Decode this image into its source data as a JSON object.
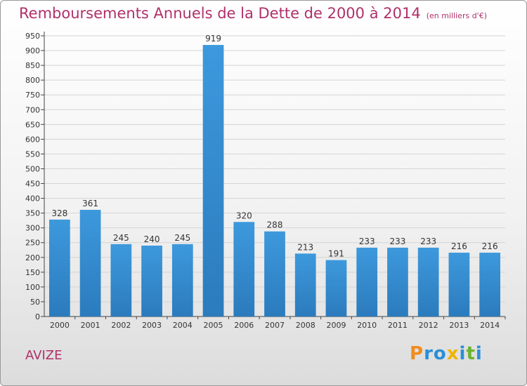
{
  "header": {
    "title": "Remboursements Annuels de la Dette de 2000 à 2014",
    "unit": "(en milliers d'€)"
  },
  "footer": {
    "place": "AVIZE",
    "logo": {
      "letters": [
        "P",
        "r",
        "o",
        "x",
        "i",
        "t",
        "i"
      ],
      "colors": [
        "#f08c1e",
        "#2a8fd6",
        "#2a8fd6",
        "#f0b400",
        "#2a8fd6",
        "#6ab42d",
        "#2a8fd6"
      ]
    }
  },
  "chart_data": {
    "type": "bar",
    "title": "Remboursements Annuels de la Dette de 2000 à 2014",
    "xlabel": "",
    "ylabel": "",
    "categories": [
      "2000",
      "2001",
      "2002",
      "2003",
      "2004",
      "2005",
      "2006",
      "2007",
      "2008",
      "2009",
      "2010",
      "2011",
      "2012",
      "2013",
      "2014"
    ],
    "values": [
      328,
      361,
      245,
      240,
      245,
      919,
      320,
      288,
      213,
      191,
      233,
      233,
      233,
      216,
      216
    ],
    "data_labels": [
      "328",
      "361",
      "245",
      "240",
      "245",
      "919",
      "320",
      "288",
      "213",
      "191",
      "233",
      "233",
      "233",
      "216",
      "216"
    ],
    "ylim": [
      0,
      950
    ],
    "yticks": [
      0,
      50,
      100,
      150,
      200,
      250,
      300,
      350,
      400,
      450,
      500,
      550,
      600,
      650,
      700,
      750,
      800,
      850,
      900,
      950
    ],
    "grid": true,
    "bar_color": "#3d99dc",
    "bar_color_dark": "#2b7bbd",
    "grid_color": "#d4d4d4"
  }
}
